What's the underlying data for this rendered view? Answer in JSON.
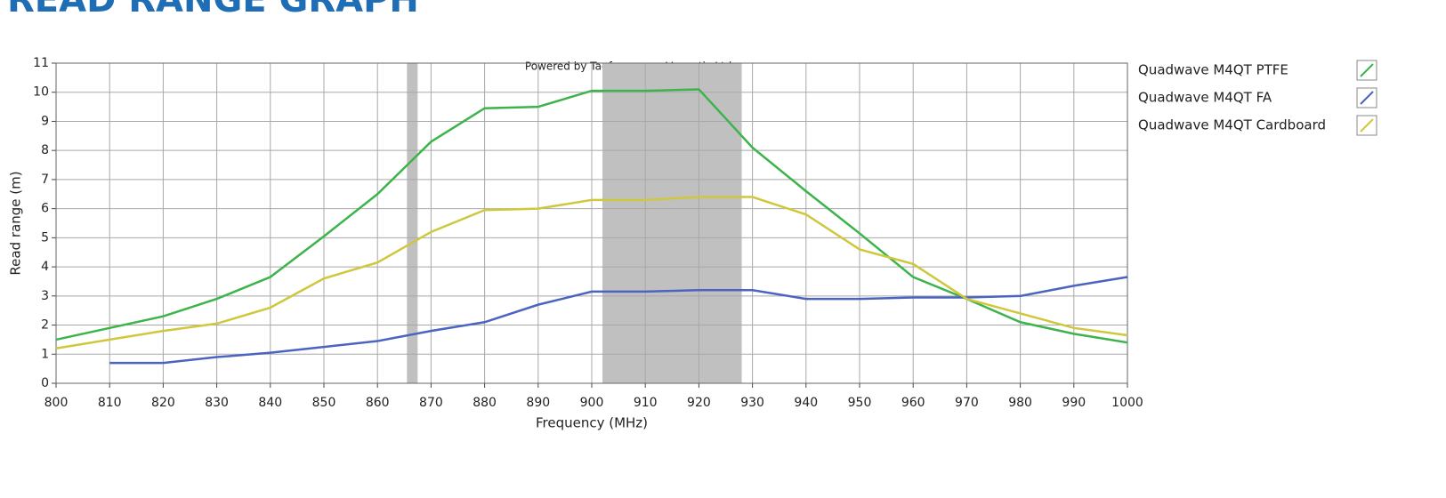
{
  "chart_data": {
    "type": "line",
    "title": "READ RANGE GRAPH",
    "annotation": "Powered by Tagformance, Voyantic Ltd.",
    "x_label": "Frequency (MHz)",
    "y_label": "Read range (m)",
    "x": [
      800,
      810,
      820,
      830,
      840,
      850,
      860,
      870,
      880,
      890,
      900,
      910,
      920,
      930,
      940,
      950,
      960,
      970,
      980,
      990,
      1000
    ],
    "series": [
      {
        "name": "Quadwave M4QT PTFE",
        "color": "#3cb44b",
        "values": [
          1.5,
          1.9,
          2.3,
          2.9,
          3.65,
          5.05,
          6.5,
          8.3,
          9.45,
          9.5,
          10.05,
          10.05,
          10.1,
          8.1,
          6.6,
          5.15,
          3.65,
          2.9,
          2.1,
          1.7,
          1.4
        ]
      },
      {
        "name": "Quadwave M4QT FA",
        "color": "#4a64c0",
        "values": [
          null,
          0.7,
          0.7,
          0.9,
          1.05,
          1.25,
          1.45,
          1.8,
          2.1,
          2.7,
          3.15,
          3.15,
          3.2,
          3.2,
          2.9,
          2.9,
          2.95,
          2.95,
          3.0,
          3.35,
          3.65
        ]
      },
      {
        "name": "Quadwave M4QT Cardboard",
        "color": "#cfc83c",
        "values": [
          1.2,
          1.5,
          1.8,
          2.05,
          2.6,
          3.6,
          4.15,
          5.2,
          5.95,
          6.0,
          6.3,
          6.3,
          6.4,
          6.4,
          5.8,
          4.6,
          4.1,
          2.9,
          2.4,
          1.9,
          1.65
        ]
      }
    ],
    "bands": [
      [
        865.5,
        867.5
      ],
      [
        902,
        928
      ]
    ],
    "band_color": "#c0c0c0",
    "xlim": [
      800,
      1000
    ],
    "ylim": [
      0,
      11
    ],
    "xticks": [
      800,
      810,
      820,
      830,
      840,
      850,
      860,
      870,
      880,
      890,
      900,
      910,
      920,
      930,
      940,
      950,
      960,
      970,
      980,
      990,
      1000
    ],
    "yticks": [
      0,
      1,
      2,
      3,
      4,
      5,
      6,
      7,
      8,
      9,
      10,
      11
    ],
    "grid": true,
    "legend": "right"
  }
}
